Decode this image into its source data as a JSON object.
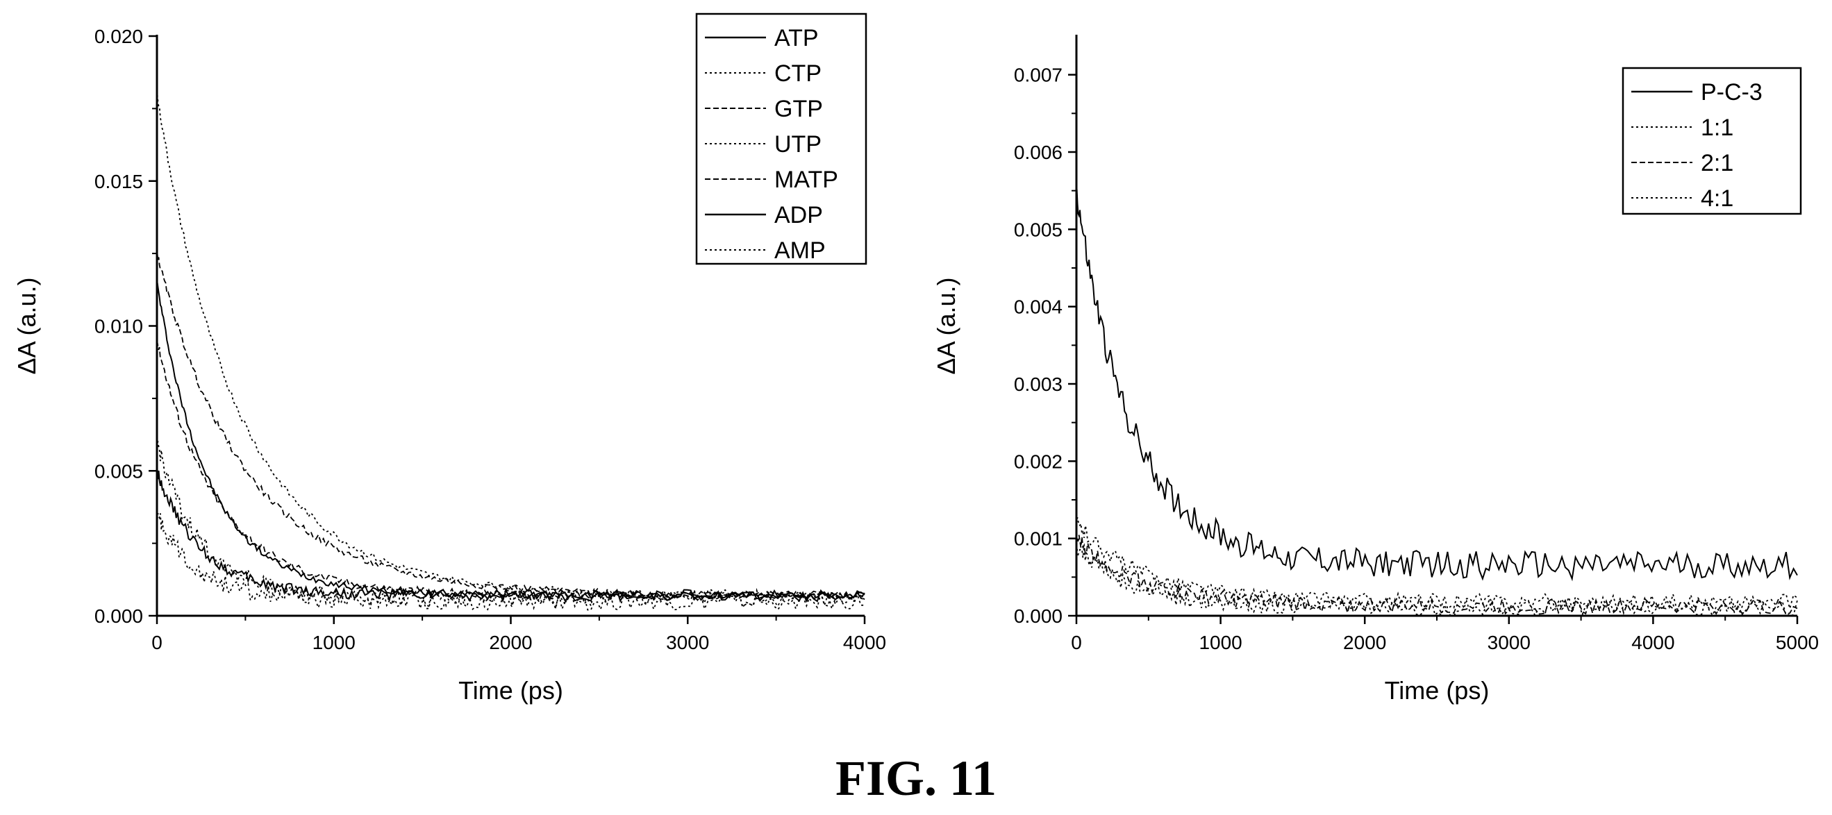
{
  "figure": {
    "caption": "FIG. 11"
  },
  "chart_data": [
    {
      "type": "line",
      "title": "",
      "xlabel": "Time (ps)",
      "ylabel": "ΔA (a.u.)",
      "xlim": [
        0,
        4000
      ],
      "ylim": [
        0,
        0.02
      ],
      "xticks": [
        0,
        1000,
        2000,
        3000,
        4000
      ],
      "yticks": [
        0.0,
        0.005,
        0.01,
        0.015,
        0.02
      ],
      "xtick_labels": [
        "0",
        "1000",
        "2000",
        "3000",
        "4000"
      ],
      "ytick_labels": [
        "0.000",
        "0.005",
        "0.010",
        "0.015",
        "0.020"
      ],
      "grid": false,
      "legend_position": "top-right",
      "series": [
        {
          "name": "ATP",
          "style": "solid",
          "initial": 0.0115,
          "tau": 380,
          "baseline": 0.0007,
          "noise": 0.00012
        },
        {
          "name": "CTP",
          "style": "dotted",
          "initial": 0.018,
          "tau": 600,
          "baseline": 0.0007,
          "noise": 0.00012
        },
        {
          "name": "GTP",
          "style": "dashed",
          "initial": 0.0125,
          "tau": 650,
          "baseline": 0.0007,
          "noise": 0.00012
        },
        {
          "name": "UTP",
          "style": "dotted",
          "initial": 0.006,
          "tau": 320,
          "baseline": 0.0006,
          "noise": 0.0003
        },
        {
          "name": "MATP",
          "style": "dashed",
          "initial": 0.0095,
          "tau": 450,
          "baseline": 0.0007,
          "noise": 0.00015
        },
        {
          "name": "ADP",
          "style": "solid",
          "initial": 0.005,
          "tau": 330,
          "baseline": 0.0007,
          "noise": 0.0002
        },
        {
          "name": "AMP",
          "style": "dotted",
          "initial": 0.0035,
          "tau": 300,
          "baseline": 0.0005,
          "noise": 0.0003
        }
      ]
    },
    {
      "type": "line",
      "title": "",
      "xlabel": "Time (ps)",
      "ylabel": "ΔA (a.u.)",
      "xlim": [
        0,
        5000
      ],
      "ylim": [
        0,
        0.0075
      ],
      "xticks": [
        0,
        1000,
        2000,
        3000,
        4000,
        5000
      ],
      "yticks": [
        0.0,
        0.001,
        0.002,
        0.003,
        0.004,
        0.005,
        0.006,
        0.007
      ],
      "xtick_labels": [
        "0",
        "1000",
        "2000",
        "3000",
        "4000",
        "5000"
      ],
      "ytick_labels": [
        "0.000",
        "0.001",
        "0.002",
        "0.003",
        "0.004",
        "0.005",
        "0.006",
        "0.007"
      ],
      "grid": false,
      "legend_position": "top-right",
      "series": [
        {
          "name": "P-C-3",
          "style": "solid",
          "initial": 0.0055,
          "tau": 500,
          "baseline": 0.00065,
          "noise": 0.00018
        },
        {
          "name": "1:1",
          "style": "dotted",
          "initial": 0.0012,
          "tau": 600,
          "baseline": 0.00018,
          "noise": 0.0001
        },
        {
          "name": "2:1",
          "style": "dashed",
          "initial": 0.001,
          "tau": 600,
          "baseline": 0.00012,
          "noise": 0.0001
        },
        {
          "name": "4:1",
          "style": "dotted",
          "initial": 0.0009,
          "tau": 500,
          "baseline": 0.0001,
          "noise": 0.0001
        }
      ]
    }
  ]
}
